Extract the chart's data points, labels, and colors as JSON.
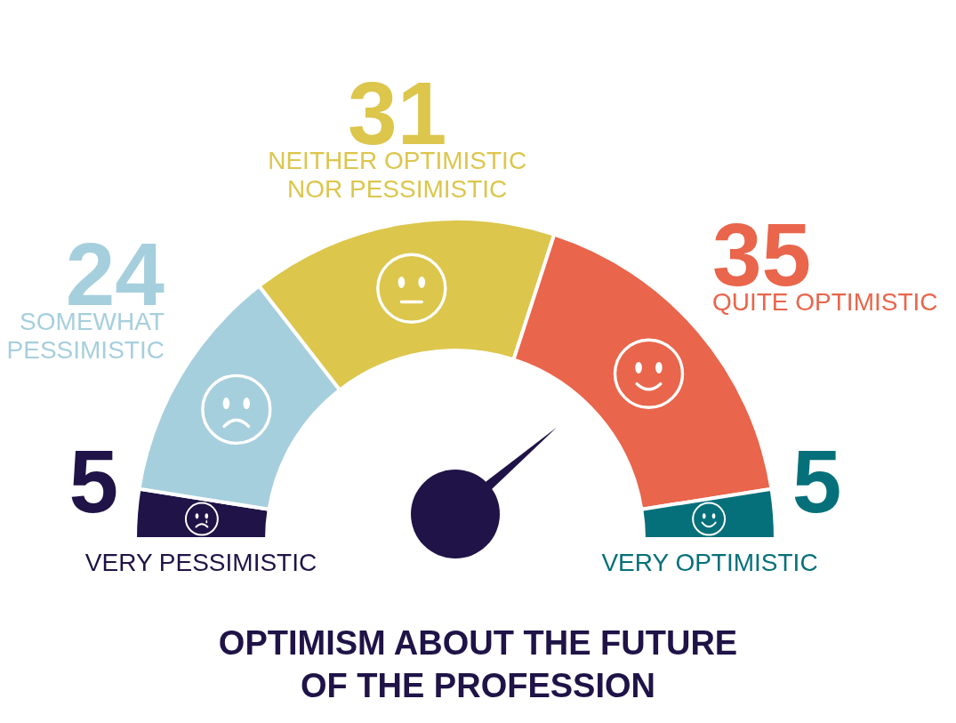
{
  "chart_data": {
    "type": "donut",
    "title": "OPTIMISM ABOUT THE FUTURE OF THE PROFESSION",
    "categories": [
      "VERY PESSIMISTIC",
      "SOMEWHAT PESSIMISTIC",
      "NEITHER OPTIMISTIC NOR PESSIMISTIC",
      "QUITE OPTIMISTIC",
      "VERY OPTIMISTIC"
    ],
    "values": [
      5,
      24,
      31,
      35,
      5
    ],
    "colors": [
      "#1f1347",
      "#a6cfdd",
      "#dcc64c",
      "#e9654b",
      "#06707a"
    ],
    "needle": "QUITE OPTIMISTIC",
    "data_labels": true
  }
}
